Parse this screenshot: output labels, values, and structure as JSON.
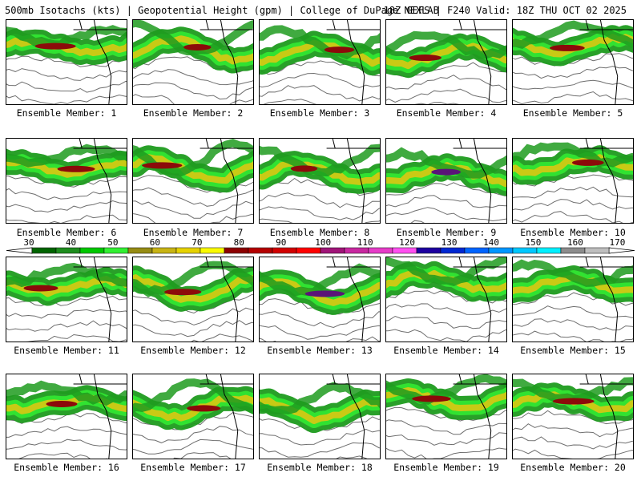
{
  "header": {
    "left": "500mb Isotachs (kts) | Geopotential Height (gpm) | College of DuPage NEXLAB",
    "right": "18Z GEFS | F240 Valid: 18Z THU OCT 02 2025"
  },
  "member_label_prefix": "Ensemble Member: ",
  "members": [
    {
      "label": "Ensemble Member: 1",
      "jet_max_kts": 85
    },
    {
      "label": "Ensemble Member: 2",
      "jet_max_kts": 85
    },
    {
      "label": "Ensemble Member: 3",
      "jet_max_kts": 85
    },
    {
      "label": "Ensemble Member: 4",
      "jet_max_kts": 85
    },
    {
      "label": "Ensemble Member: 5",
      "jet_max_kts": 85
    },
    {
      "label": "Ensemble Member: 6",
      "jet_max_kts": 85
    },
    {
      "label": "Ensemble Member: 7",
      "jet_max_kts": 85
    },
    {
      "label": "Ensemble Member: 8",
      "jet_max_kts": 85
    },
    {
      "label": "Ensemble Member: 9",
      "jet_max_kts": 115
    },
    {
      "label": "Ensemble Member: 10",
      "jet_max_kts": 85
    },
    {
      "label": "Ensemble Member: 11",
      "jet_max_kts": 85
    },
    {
      "label": "Ensemble Member: 12",
      "jet_max_kts": 85
    },
    {
      "label": "Ensemble Member: 13",
      "jet_max_kts": 105
    },
    {
      "label": "Ensemble Member: 14",
      "jet_max_kts": 75
    },
    {
      "label": "Ensemble Member: 15",
      "jet_max_kts": 75
    },
    {
      "label": "Ensemble Member: 16",
      "jet_max_kts": 85
    },
    {
      "label": "Ensemble Member: 17",
      "jet_max_kts": 85
    },
    {
      "label": "Ensemble Member: 18",
      "jet_max_kts": 75
    },
    {
      "label": "Ensemble Member: 19",
      "jet_max_kts": 85
    },
    {
      "label": "Ensemble Member: 20",
      "jet_max_kts": 85
    }
  ],
  "colorbar": {
    "labels": [
      "30",
      "40",
      "50",
      "60",
      "70",
      "80",
      "90",
      "100",
      "110",
      "120",
      "130",
      "140",
      "150",
      "160",
      "170"
    ],
    "colors": [
      "#006400",
      "#1e8c1e",
      "#00c800",
      "#32f032",
      "#968c14",
      "#c8b414",
      "#e6d200",
      "#fafa00",
      "#8c0000",
      "#b40000",
      "#d20000",
      "#ff0000",
      "#a01478",
      "#c828a0",
      "#e63cc8",
      "#ff50f0",
      "#1e00a0",
      "#0028d2",
      "#0064ff",
      "#0096ff",
      "#00c8ff",
      "#00f0ff",
      "#8c8c8c",
      "#bebebe"
    ]
  },
  "map_colors": {
    "jet_outer": "#1e9b1e",
    "jet_mid": "#32e632",
    "jet_core": "#d2c814",
    "jet_max": "#8c0a0a",
    "jet_extreme": "#5a1478",
    "height_contour": "#6e6e6e",
    "borders": "#000000"
  }
}
